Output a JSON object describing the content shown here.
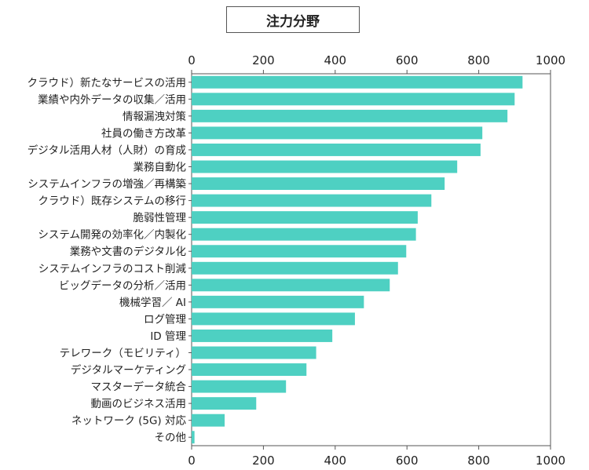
{
  "chart_data": {
    "type": "bar",
    "orientation": "horizontal",
    "title": "注力分野",
    "xlim": [
      0,
      1000
    ],
    "ticks": [
      0,
      200,
      400,
      600,
      800,
      1000
    ],
    "tick_labels": [
      "0",
      "200",
      "400",
      "600",
      "800",
      "1000"
    ],
    "grid": false,
    "bar_color": "#4ed0c2",
    "categories": [
      "クラウド）新たなサービスの活用",
      "業績や内外データの収集／活用",
      "情報漏洩対策",
      "社員の働き方改革",
      "デジタル活用人材（人財）の育成",
      "業務自動化",
      "システムインフラの増強／再構築",
      "クラウド）既存システムの移行",
      "脆弱性管理",
      "システム開発の効率化／内製化",
      "業務や文書のデジタル化",
      "システムインフラのコスト削減",
      "ビッグデータの分析／活用",
      "機械学習／ AI",
      "ログ管理",
      "ID 管理",
      "テレワーク（モビリティ）",
      "デジタルマーケティング",
      "マスターデータ統合",
      "動画のビジネス活用",
      "ネットワーク (5G) 対応",
      "その他"
    ],
    "values": [
      922,
      900,
      880,
      810,
      805,
      740,
      705,
      668,
      630,
      625,
      598,
      575,
      552,
      480,
      455,
      392,
      347,
      320,
      263,
      180,
      92,
      8
    ]
  }
}
